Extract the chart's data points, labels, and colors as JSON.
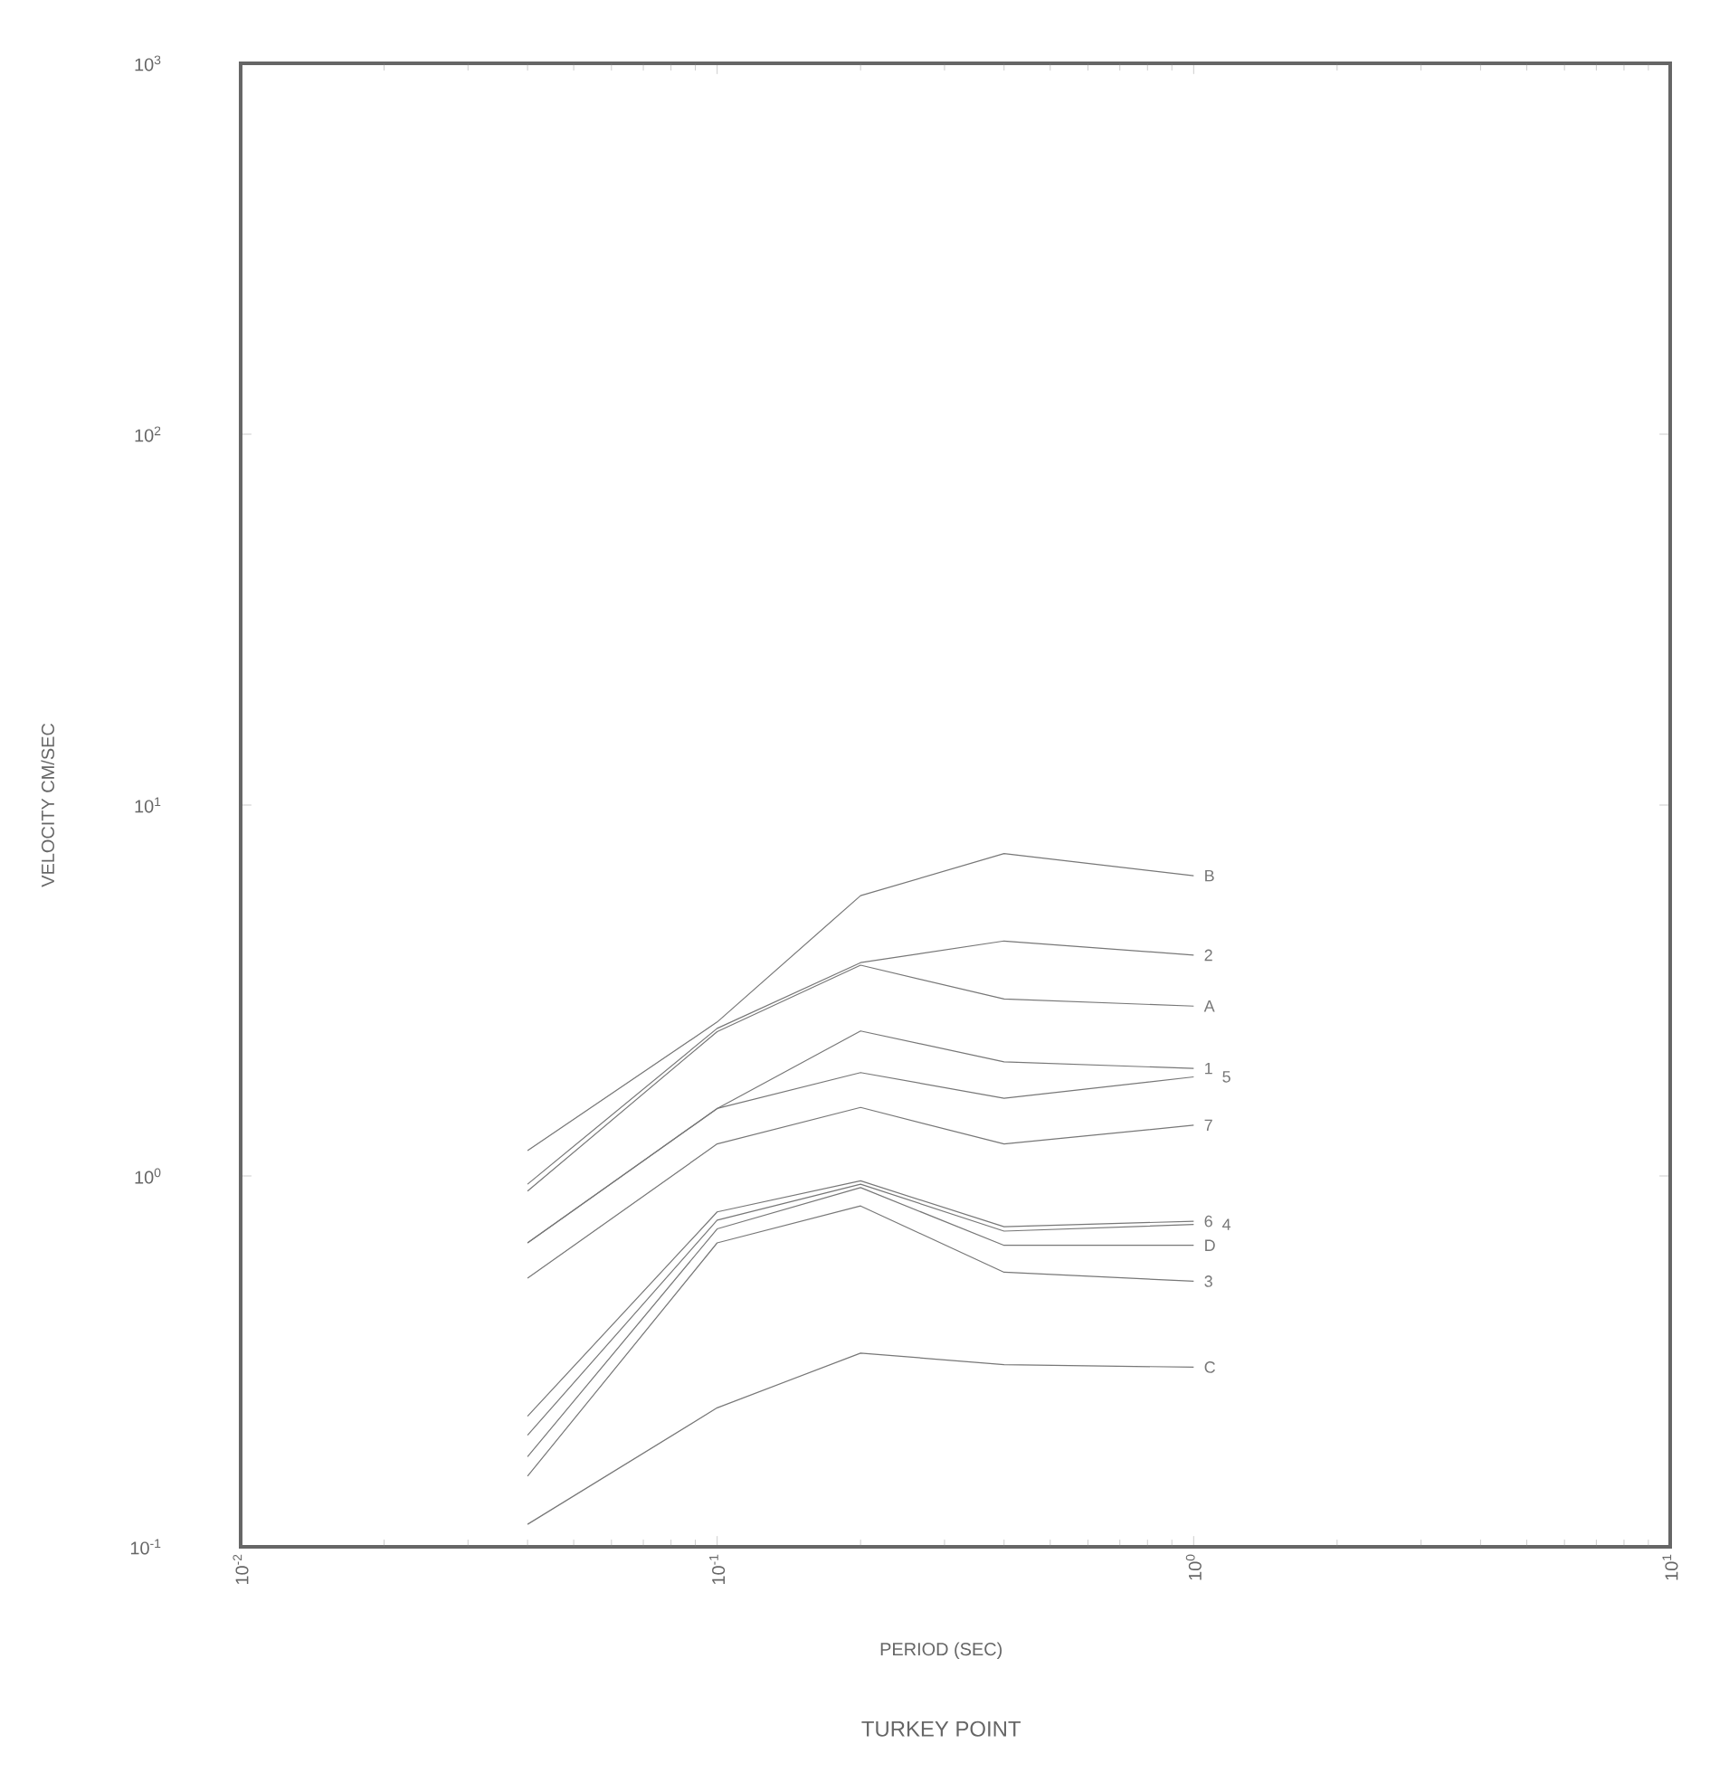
{
  "chart_data": {
    "type": "line",
    "title": "TURKEY POINT",
    "xlabel": "PERIOD (SEC)",
    "ylabel": "VELOCITY CM/SEC",
    "log": "xy",
    "xlim": [
      0.01,
      10
    ],
    "ylim": [
      0.1,
      1000
    ],
    "xticks": [
      {
        "value": 0.01,
        "label": "10$^{-2}$"
      },
      {
        "value": 0.02,
        "label": null
      },
      {
        "value": 0.03,
        "label": null
      },
      {
        "value": 0.04,
        "label": null
      },
      {
        "value": 0.05,
        "label": null
      },
      {
        "value": 0.06,
        "label": null
      },
      {
        "value": 0.07,
        "label": null
      },
      {
        "value": 0.08,
        "label": null
      },
      {
        "value": 0.09,
        "label": null
      },
      {
        "value": 0.1,
        "label": "10$^{-1}$"
      },
      {
        "value": 0.2,
        "label": null
      },
      {
        "value": 0.3,
        "label": null
      },
      {
        "value": 0.4,
        "label": null
      },
      {
        "value": 0.5,
        "label": null
      },
      {
        "value": 0.6,
        "label": null
      },
      {
        "value": 0.7,
        "label": null
      },
      {
        "value": 0.8,
        "label": null
      },
      {
        "value": 0.9,
        "label": null
      },
      {
        "value": 1,
        "label": "10$^{0}$"
      },
      {
        "value": 2,
        "label": null
      },
      {
        "value": 3,
        "label": null
      },
      {
        "value": 4,
        "label": null
      },
      {
        "value": 5,
        "label": null
      },
      {
        "value": 6,
        "label": null
      },
      {
        "value": 7,
        "label": null
      },
      {
        "value": 8,
        "label": null
      },
      {
        "value": 9,
        "label": null
      },
      {
        "value": 10,
        "label": "10$^{1}$"
      }
    ],
    "yticks": [
      {
        "value": 0.1,
        "label": "10$^{-1}$"
      },
      {
        "value": 1,
        "label": "10$^{0}$"
      },
      {
        "value": 10,
        "label": "10$^{1}$"
      },
      {
        "value": 100,
        "label": "10$^{2}$"
      },
      {
        "value": 1000,
        "label": "10$^{3}$"
      }
    ],
    "x": [
      0.04,
      0.1,
      0.2,
      0.4,
      1.0
    ],
    "series": [
      {
        "name": "B",
        "color": "#777777",
        "values": [
          1.17,
          2.6,
          5.7,
          7.4,
          6.45
        ]
      },
      {
        "name": "2",
        "color": "#777777",
        "values": [
          0.95,
          2.5,
          3.76,
          4.3,
          3.94
        ]
      },
      {
        "name": "A",
        "color": "#777777",
        "values": [
          0.91,
          2.45,
          3.7,
          3.0,
          2.87
        ]
      },
      {
        "name": "1",
        "color": "#777777",
        "values": [
          0.66,
          1.52,
          2.46,
          2.03,
          1.95
        ]
      },
      {
        "name": "5",
        "color": "#777777",
        "values": [
          0.66,
          1.52,
          1.9,
          1.62,
          1.85
        ]
      },
      {
        "name": "7",
        "color": "#777777",
        "values": [
          0.53,
          1.22,
          1.53,
          1.22,
          1.37
        ]
      },
      {
        "name": "6",
        "color": "#777777",
        "values": [
          0.225,
          0.8,
          0.97,
          0.73,
          0.755
        ]
      },
      {
        "name": "4",
        "color": "#777777",
        "values": [
          0.2,
          0.76,
          0.95,
          0.71,
          0.74
        ]
      },
      {
        "name": "D",
        "color": "#777777",
        "values": [
          0.175,
          0.72,
          0.93,
          0.65,
          0.65
        ]
      },
      {
        "name": "3",
        "color": "#777777",
        "values": [
          0.155,
          0.66,
          0.83,
          0.55,
          0.52
        ]
      },
      {
        "name": "C",
        "color": "#777777",
        "values": [
          0.115,
          0.237,
          0.333,
          0.31,
          0.305
        ]
      }
    ]
  }
}
